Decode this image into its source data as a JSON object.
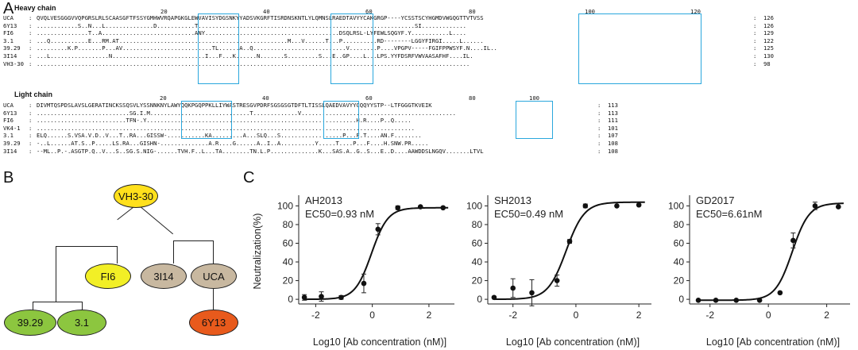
{
  "panels": {
    "a": {
      "label": "A"
    },
    "b": {
      "label": "B"
    },
    "c": {
      "label": "C"
    }
  },
  "heavy": {
    "title": "Heavy chain",
    "ticks": [
      "20",
      "40",
      "60",
      "80",
      "100",
      "120"
    ],
    "rows": [
      {
        "name": "UCA",
        "seq": "QVQLVESGGGVVQPGRSLRLSCAASGFTFSSYGMHWVRQAPGKGLEWVAVISYDGSNKYYADSVKGRFTISRDNSKNTLYLQMNSLRAEDTAVYYCAKGRGP----YCSSTSCYHGMDVWGQGTTVTVSS",
        "len": "126"
      },
      {
        "name": "6Y13",
        "seq": "............S..N...L..............D...........T...............................................................SI.............",
        "len": "126"
      },
      {
        "name": "FI6",
        "seq": "...............T..A...........................ANY.......................................DSQLRSL-LYFEWLSQGYF.Y...........L....",
        "len": "129"
      },
      {
        "name": "3.1",
        "seq": "...Q...........E...RM.AT.................................................M...V......T...P..........RD--------LGGYFIRGI.....L......",
        "len": "122"
      },
      {
        "name": "39.29",
        "seq": ".........K.P.......P...AV..........................TL......A..Q...........................V........P....VPGPV-----FGIFPPWSYF.N....IL..",
        "len": "125"
      },
      {
        "name": "3I14",
        "seq": "...L.................N...........................I...F...K......N.......S.........S...E..GP....L...LPS.YYFDSRFVWVAASAFHF....IL.",
        "len": "130"
      },
      {
        "name": "VH3-30",
        "seq": "..............................................................................................................................",
        "len": "98"
      }
    ]
  },
  "light": {
    "title": "Light chain",
    "ticks": [
      "20",
      "40",
      "60",
      "80",
      "100"
    ],
    "rows": [
      {
        "name": "UCA",
        "seq": "DIVMTQSPDSLAVSLGERATINCKSSQSVLYSSNNKNYLAWYQQKPGQPPKLLIYWASTRESGVPDRFSGSGSGTDFTLTISSLQAEDVAVYYCQQYYSTP--LTFGGGTKVEIK",
        "len": "113"
      },
      {
        "name": "6Y13",
        "seq": "...........................SG.I.M.............................T.............V.............................................",
        "len": "113"
      },
      {
        "name": "FI6",
        "seq": "..........................TFN-.Y.............................................................H.R....P..Q.....",
        "len": "111"
      },
      {
        "name": "VK4-1",
        "seq": "..............................................................................................................",
        "len": "101"
      },
      {
        "name": "3.1",
        "seq": "ELQ......S.VSA.V.D..V...T..RA...GISSW-...........KA.........A...SLQ...S..................P...F.T....AN.F........",
        "len": "107"
      },
      {
        "name": "39.29",
        "seq": "-..L......AT.S..P.....LS.RA...GISHN-..............A.R....G......A..I..A..........Y.....T....P...F....H.SNW.PR.....",
        "len": "108"
      },
      {
        "name": "3I14",
        "seq": "--ML..P.-.ASGTP.Q..V...S..SG.S.NIG-......TVH.F..L...TA........TN.L.P..............K...SAS.A..G..S...E..D....AAWDDSLNGQV.......LTVL",
        "len": "108"
      }
    ]
  },
  "tree": {
    "root": {
      "label": "VH3-30",
      "color": "#ffe01c"
    },
    "fi6": {
      "label": "FI6",
      "color": "#f2ef26"
    },
    "i3i14": {
      "label": "3I14",
      "color": "#c8b8a0"
    },
    "uca": {
      "label": "UCA",
      "color": "#c8b8a0"
    },
    "a3929": {
      "label": "39.29",
      "color": "#8cc63f"
    },
    "a31": {
      "label": "3.1",
      "color": "#8cc63f"
    },
    "y613": {
      "label": "6Y13",
      "color": "#e85a1c"
    }
  },
  "colors": {
    "cdr_box": "#2aa7dd",
    "curve": "#111111"
  },
  "chart_data": [
    {
      "type": "scatter",
      "title": "AH2013",
      "ec50": "EC50=0.93 nM",
      "xlabel": "Log10 [Ab concentration (nM)]",
      "ylabel": "Neutralization(%)",
      "xlim": [
        -2.6,
        2.9
      ],
      "ylim": [
        -5,
        108
      ],
      "xticks": [
        "-2",
        "0",
        "2"
      ],
      "yticks": [
        "0",
        "20",
        "40",
        "60",
        "80",
        "100"
      ],
      "points": [
        {
          "x": -2.4,
          "y": 2,
          "err": 3
        },
        {
          "x": -1.8,
          "y": 3,
          "err": 5
        },
        {
          "x": -1.1,
          "y": 2,
          "err": 2
        },
        {
          "x": -0.3,
          "y": 17,
          "err": 10
        },
        {
          "x": 0.2,
          "y": 75,
          "err": 6
        },
        {
          "x": 0.9,
          "y": 98,
          "err": 2
        },
        {
          "x": 1.7,
          "y": 99,
          "err": 1
        },
        {
          "x": 2.5,
          "y": 98,
          "err": 1
        }
      ],
      "fit": {
        "log_ec50": -0.03,
        "hill": 1.5,
        "bottom": 0,
        "top": 98
      }
    },
    {
      "type": "scatter",
      "title": "SH2013",
      "ec50": "EC50=0.49 nM",
      "xlabel": "Log10 [Ab concentration (nM)]",
      "ylabel": "",
      "xlim": [
        -2.8,
        2.4
      ],
      "ylim": [
        -5,
        108
      ],
      "xticks": [
        "-2",
        "0",
        "2"
      ],
      "yticks": [
        "0",
        "20",
        "40",
        "60",
        "80",
        "100"
      ],
      "points": [
        {
          "x": -2.6,
          "y": 2,
          "err": 1
        },
        {
          "x": -2.0,
          "y": 12,
          "err": 10
        },
        {
          "x": -1.4,
          "y": 7,
          "err": 14
        },
        {
          "x": -0.6,
          "y": 20,
          "err": 6
        },
        {
          "x": -0.2,
          "y": 62,
          "err": 2
        },
        {
          "x": 0.3,
          "y": 100,
          "err": 2
        },
        {
          "x": 1.3,
          "y": 100,
          "err": 1
        },
        {
          "x": 2.0,
          "y": 101,
          "err": 1
        }
      ],
      "fit": {
        "log_ec50": -0.31,
        "hill": 1.5,
        "bottom": 0,
        "top": 104
      }
    },
    {
      "type": "scatter",
      "title": "GD2017",
      "ec50": "EC50=6.61nM",
      "xlabel": "Log10 [Ab concentration (nM)]",
      "ylabel": "",
      "xlim": [
        -2.7,
        2.8
      ],
      "ylim": [
        -5,
        108
      ],
      "xticks": [
        "-2",
        "0",
        "2"
      ],
      "yticks": [
        "0",
        "20",
        "40",
        "60",
        "80",
        "100"
      ],
      "points": [
        {
          "x": -2.4,
          "y": -1,
          "err": 1
        },
        {
          "x": -1.8,
          "y": -1,
          "err": 1
        },
        {
          "x": -1.1,
          "y": -1,
          "err": 1
        },
        {
          "x": -0.3,
          "y": -1,
          "err": 1
        },
        {
          "x": 0.4,
          "y": 7,
          "err": 1
        },
        {
          "x": 0.85,
          "y": 63,
          "err": 8
        },
        {
          "x": 1.6,
          "y": 100,
          "err": 4
        },
        {
          "x": 2.4,
          "y": 99,
          "err": 1
        }
      ],
      "fit": {
        "log_ec50": 0.82,
        "hill": 1.5,
        "bottom": -1,
        "top": 103
      }
    }
  ]
}
